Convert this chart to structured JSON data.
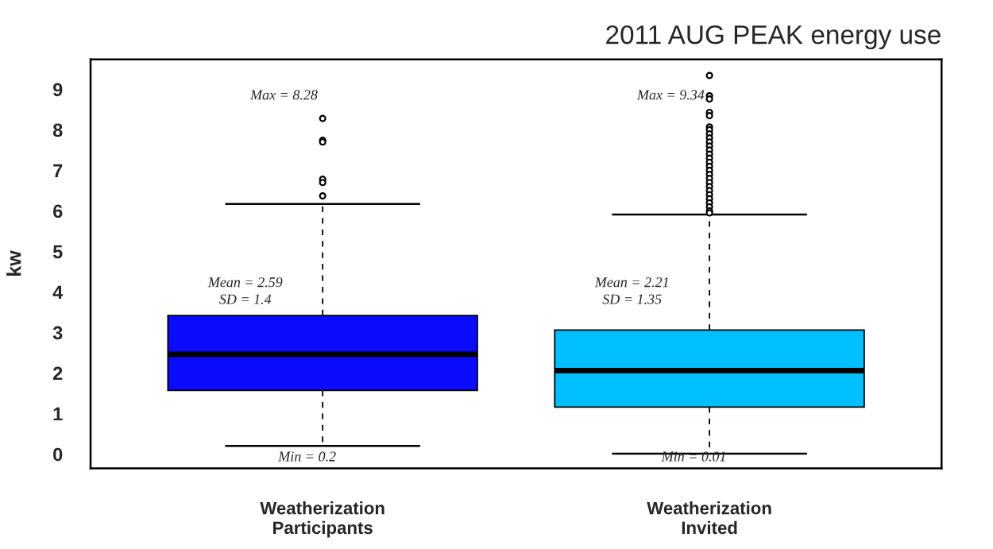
{
  "chart_data": {
    "type": "box",
    "title": "2011 AUG PEAK energy use",
    "ylabel": "kw",
    "categories": [
      "Weatherization\nParticipants",
      "Weatherization\nInvited"
    ],
    "colors": [
      "#0a0aff",
      "#00bfff"
    ],
    "boxes": [
      {
        "low": 0.2,
        "q1": 1.57,
        "median": 2.46,
        "q3": 3.42,
        "high": 6.17,
        "outliers": [
          8.28,
          7.74,
          7.7,
          6.78,
          6.7,
          6.37
        ]
      },
      {
        "low": 0.01,
        "q1": 1.16,
        "median": 2.06,
        "q3": 3.06,
        "high": 5.91,
        "outliers": [
          9.34,
          8.84,
          8.76,
          8.43,
          8.35,
          8.07,
          8.0,
          7.9,
          7.8,
          7.7,
          7.6,
          7.5,
          7.4,
          7.3,
          7.2,
          7.1,
          7.0,
          6.9,
          6.8,
          6.7,
          6.6,
          6.5,
          6.4,
          6.3,
          6.2,
          6.1,
          6.0,
          5.95
        ]
      }
    ],
    "ylim": [
      -0.35,
      9.74
    ],
    "yticks": [
      0,
      1,
      2,
      3,
      4,
      5,
      6,
      7,
      8,
      9
    ],
    "grid": false,
    "annotations": [
      "Max = 8.28",
      "Mean = 2.59\nSD = 1.4",
      "Min = 0.2",
      "Max = 9.34",
      "Mean = 2.21\nSD = 1.35",
      "Min = 0.01"
    ]
  }
}
